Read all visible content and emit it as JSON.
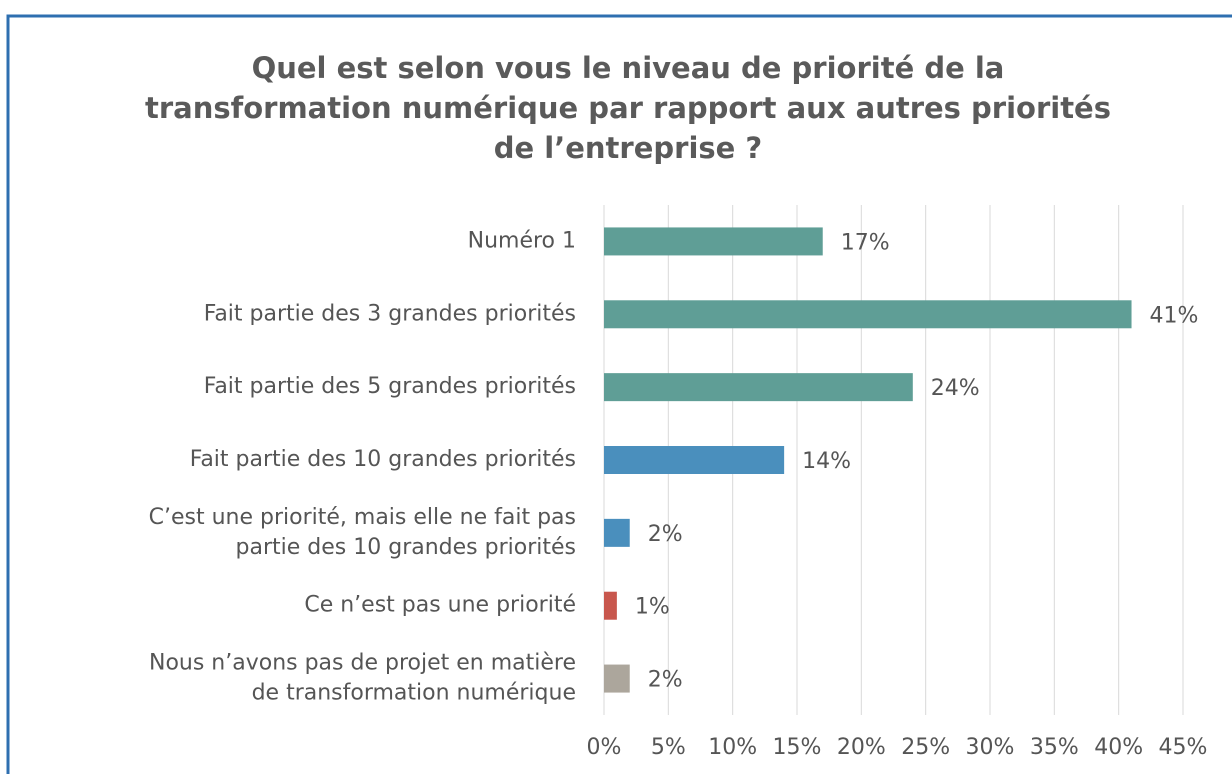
{
  "chart_data": {
    "type": "barh",
    "title": "Quel est selon vous le niveau de priorité de la\ntransformation numérique par rapport aux autres priorités\nde l’entreprise ?",
    "categories": [
      "Numéro 1",
      "Fait partie des 3 grandes priorités",
      "Fait partie des 5 grandes priorités",
      "Fait partie des 10 grandes priorités",
      "C’est une priorité, mais elle ne fait pas\npartie des 10 grandes priorités",
      "Ce n’est pas une priorité",
      "Nous n’avons pas de projet en matière\nde transformation numérique"
    ],
    "values": [
      17,
      41,
      24,
      14,
      2,
      1,
      2
    ],
    "value_labels": [
      "17%",
      "41%",
      "24%",
      "14%",
      "2%",
      "1%",
      "2%"
    ],
    "colors": [
      "#5f9e96",
      "#5f9e96",
      "#5f9e96",
      "#4a8fbd",
      "#4a8fbd",
      "#c8574d",
      "#aca69c"
    ],
    "xlim": [
      0,
      45
    ],
    "xticks": [
      {
        "value": 0,
        "label": "0%"
      },
      {
        "value": 5,
        "label": "5%"
      },
      {
        "value": 10,
        "label": "10%"
      },
      {
        "value": 15,
        "label": "15%"
      },
      {
        "value": 20,
        "label": "20%"
      },
      {
        "value": 25,
        "label": "25%"
      },
      {
        "value": 30,
        "label": "30%"
      },
      {
        "value": 35,
        "label": "35%"
      },
      {
        "value": 40,
        "label": "40%"
      },
      {
        "value": 45,
        "label": "45%"
      }
    ],
    "grid": true
  }
}
